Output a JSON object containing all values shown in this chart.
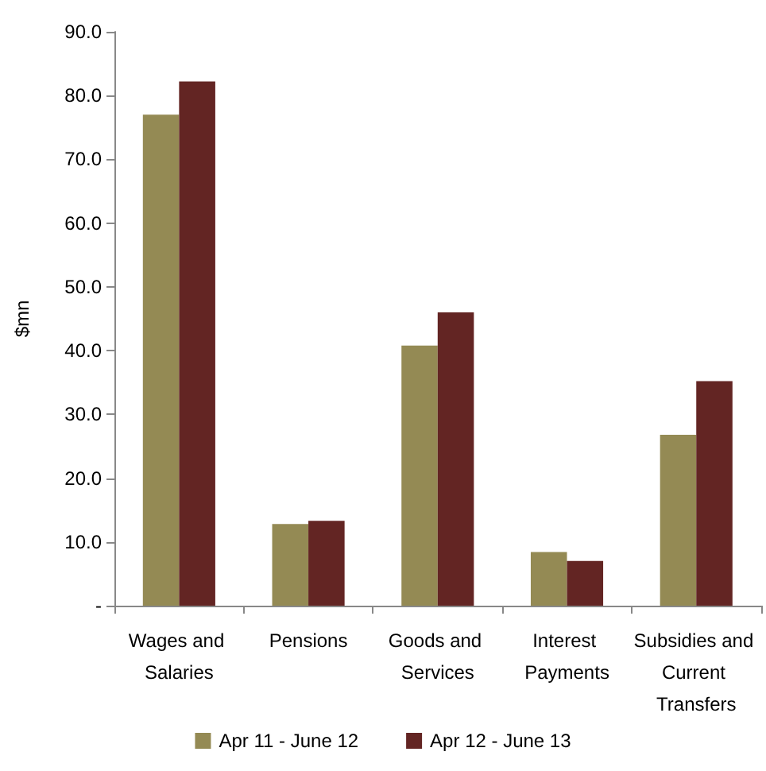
{
  "chart_data": {
    "type": "bar",
    "ylabel": "$mn",
    "categories": [
      "Wages and Salaries",
      "Pensions",
      "Goods and Services",
      "Interest Payments",
      "Subsidies and Current Transfers"
    ],
    "series": [
      {
        "name": "Apr 11 - June 12",
        "color": "#948a54",
        "values": [
          77.0,
          12.8,
          40.8,
          8.4,
          26.8
        ]
      },
      {
        "name": "Apr 12 - June 13",
        "color": "#632523",
        "values": [
          82.2,
          13.3,
          46.0,
          7.0,
          35.2
        ]
      }
    ],
    "ylim": [
      0,
      90
    ],
    "yticks": [
      {
        "value": 0,
        "label": "-"
      },
      {
        "value": 10,
        "label": "10.0"
      },
      {
        "value": 20,
        "label": "20.0"
      },
      {
        "value": 30,
        "label": "30.0"
      },
      {
        "value": 40,
        "label": "40.0"
      },
      {
        "value": 50,
        "label": "50.0"
      },
      {
        "value": 60,
        "label": "60.0"
      },
      {
        "value": 70,
        "label": "70.0"
      },
      {
        "value": 80,
        "label": "80.0"
      },
      {
        "value": 90,
        "label": "90.0"
      }
    ],
    "grid": false,
    "legend": "bottom"
  }
}
